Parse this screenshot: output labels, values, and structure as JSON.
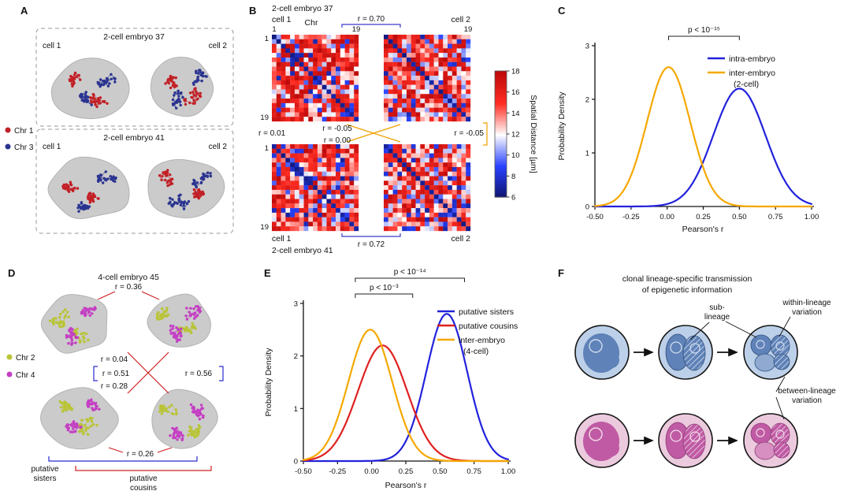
{
  "panels": {
    "A": {
      "label": "A",
      "legend": [
        {
          "name": "Chr 1",
          "color": "#c22026"
        },
        {
          "name": "Chr 3",
          "color": "#2a3490"
        }
      ],
      "groups": [
        {
          "title": "2-cell embryo 37",
          "cell_left": "cell 1",
          "cell_right": "cell 2"
        },
        {
          "title": "2-cell embryo 41",
          "cell_left": "cell 1",
          "cell_right": "cell 2"
        }
      ]
    },
    "B": {
      "label": "B",
      "title_top": "2-cell embryo 37",
      "cell1_top": "cell 1",
      "cell2_top": "cell 2",
      "chr_label": "Chr",
      "tick_first": "1",
      "tick_last": "19",
      "r_top": "r = 0.70",
      "r_left": "r = 0.01",
      "r_cross_upper": "r = -0.05",
      "r_cross_lower": "r = 0.00",
      "r_right": "r = -0.05",
      "r_bottom": "r = 0.72",
      "cell1_bottom": "cell 1",
      "cell2_bottom": "cell 2",
      "title_bottom": "2-cell embryo 41",
      "colorbar_label": "Spatial Distance [µm]",
      "intra_color": "#3a3acc",
      "inter_color": "#f0a000"
    },
    "C": {
      "label": "C"
    },
    "D": {
      "label": "D",
      "title": "4-cell embryo 45",
      "legend": [
        {
          "name": "Chr 2",
          "color": "#b9c437"
        },
        {
          "name": "Chr 4",
          "color": "#c43fc4"
        }
      ],
      "r_top": "r = 0.36",
      "r_left_upper": "r = 0.04",
      "r_left_mid": "r = 0.51",
      "r_left_lower": "r = 0.28",
      "r_right": "r = 0.56",
      "r_bottom": "r = 0.26",
      "sisters_1": "putative",
      "sisters_2": "sisters",
      "cousins_1": "putative",
      "cousins_2": "cousins",
      "sister_color": "#2a2ad0",
      "cousin_color": "#d02020"
    },
    "E": {
      "label": "E"
    },
    "F": {
      "label": "F",
      "title_1": "clonal lineage-specific transmission",
      "title_2": "of epigenetic information",
      "sub_1": "sub-",
      "sub_2": "lineage",
      "within_1": "within-lineage",
      "within_2": "variation",
      "between_1": "between-lineage",
      "between_2": "variation",
      "colors": {
        "blue_outer": "#bdd0e9",
        "blue_inner": "#5f82b8",
        "blue_light": "#8fa9d0",
        "blue_edge": "#31507f",
        "blue_ring": "#cfdcef",
        "pink_outer": "#eccade",
        "pink_inner": "#c05aa4",
        "pink_light": "#d68fc0",
        "pink_edge": "#8e3d77",
        "pink_ring": "#f2dcea"
      }
    }
  },
  "chart_data": [
    {
      "id": "B",
      "type": "heatmap",
      "title": "Pairwise chromosome spatial-distance matrices",
      "matrix_size": [
        19,
        19
      ],
      "axis_label": "Chr",
      "axis_ticks": [
        1,
        19
      ],
      "matrices": [
        "2-cell embryo 37 - cell 1",
        "2-cell embryo 37 - cell 2",
        "2-cell embryo 41 - cell 1",
        "2-cell embryo 41 - cell 2"
      ],
      "colorbar": {
        "label": "Spatial Distance [µm]",
        "min": 6,
        "max": 18,
        "ticks": [
          18,
          16,
          14,
          12,
          10,
          8,
          6
        ]
      },
      "correlations": [
        {
          "pair": "embryo 37: cell 1 vs cell 2",
          "r": 0.7,
          "class": "intra-embryo"
        },
        {
          "pair": "embryo 41: cell 1 vs cell 2",
          "r": 0.72,
          "class": "intra-embryo"
        },
        {
          "pair": "37 cell 1 vs 41 cell 1",
          "r": 0.01,
          "class": "inter-embryo"
        },
        {
          "pair": "37 cell 1 vs 41 cell 2",
          "r": -0.05,
          "class": "inter-embryo"
        },
        {
          "pair": "37 cell 2 vs 41 cell 1",
          "r": 0.0,
          "class": "inter-embryo"
        },
        {
          "pair": "37 cell 2 vs 41 cell 2",
          "r": -0.05,
          "class": "inter-embryo"
        }
      ]
    },
    {
      "id": "C",
      "type": "line",
      "xlabel": "Pearson's r",
      "ylabel": "Probability Density",
      "xlim": [
        -0.5,
        1.0
      ],
      "ylim": [
        0,
        3
      ],
      "xticks": [
        -0.5,
        -0.25,
        0,
        0.25,
        0.5,
        0.75,
        1.0
      ],
      "xtick_labels": [
        "-0.50",
        "-0.25",
        "0.00",
        "0.25",
        "0.50",
        "0.75",
        "1.00"
      ],
      "yticks": [
        0,
        1,
        2,
        3
      ],
      "ytick_labels": [
        "0",
        "1",
        "2",
        "3"
      ],
      "legend_position": "upper right",
      "series": [
        {
          "name": "intra-embryo",
          "qualifier": "",
          "color": "#2222dd",
          "peak_x": 0.5,
          "peak_y": 2.2,
          "sd": 0.18
        },
        {
          "name": "inter-embryo",
          "qualifier": "(2-cell)",
          "color": "#f5a800",
          "peak_x": 0.01,
          "peak_y": 2.6,
          "sd": 0.15
        }
      ],
      "annotations": [
        {
          "label": "p < 10⁻¹⁵",
          "x1": 0.01,
          "x2": 0.5,
          "level": 1
        }
      ]
    },
    {
      "id": "E",
      "type": "line",
      "xlabel": "Pearson's r",
      "ylabel": "Probability Density",
      "xlim": [
        -0.5,
        1.0
      ],
      "ylim": [
        0,
        3
      ],
      "xticks": [
        -0.5,
        -0.25,
        0,
        0.25,
        0.5,
        0.75,
        1.0
      ],
      "xtick_labels": [
        "-0.50",
        "-0.25",
        "0.00",
        "0.25",
        "0.50",
        "0.75",
        "1.00"
      ],
      "yticks": [
        0,
        1,
        2,
        3
      ],
      "ytick_labels": [
        "0",
        "1",
        "2",
        "3"
      ],
      "legend_position": "upper right",
      "series": [
        {
          "name": "putative sisters",
          "qualifier": "",
          "color": "#2222dd",
          "peak_x": 0.55,
          "peak_y": 2.8,
          "sd": 0.15
        },
        {
          "name": "putative cousins",
          "qualifier": "",
          "color": "#e02020",
          "peak_x": 0.08,
          "peak_y": 2.2,
          "sd": 0.18
        },
        {
          "name": "inter-embryo",
          "qualifier": "(4-cell)",
          "color": "#f5a800",
          "peak_x": -0.01,
          "peak_y": 2.5,
          "sd": 0.16
        }
      ],
      "annotations": [
        {
          "label": "p < 10⁻³",
          "x1": -0.12,
          "x2": 0.3,
          "level": 1
        },
        {
          "label": "p < 10⁻¹⁴",
          "x1": -0.12,
          "x2": 0.68,
          "level": 2
        }
      ]
    }
  ]
}
